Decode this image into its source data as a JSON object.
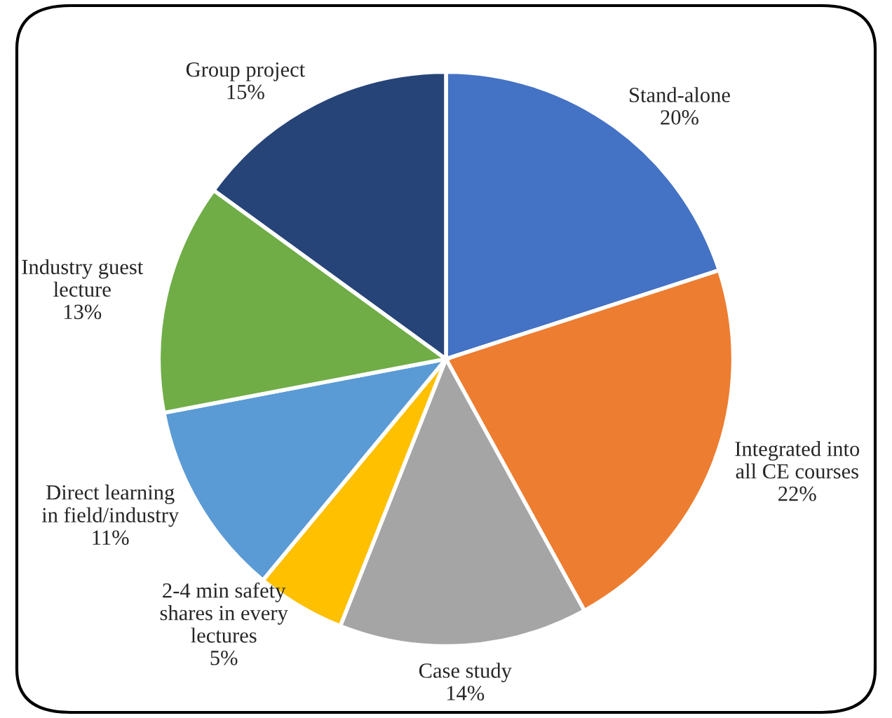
{
  "chart_data": {
    "type": "pie",
    "categories": [
      "Stand-alone",
      "Integrated into\nall CE courses",
      "Case study",
      "2-4 min safety\nshares in every\nlectures",
      "Direct learning\nin field/industry",
      "Industry guest\nlecture",
      "Group project"
    ],
    "values": [
      20,
      22,
      14,
      5,
      11,
      13,
      15
    ],
    "colors": [
      "#4472c4",
      "#ed7d31",
      "#a5a5a5",
      "#ffc000",
      "#5b9bd5",
      "#70ad47",
      "#264478"
    ],
    "value_labels": [
      "20%",
      "22%",
      "14%",
      "5%",
      "11%",
      "13%",
      "15%"
    ],
    "legend": false
  }
}
